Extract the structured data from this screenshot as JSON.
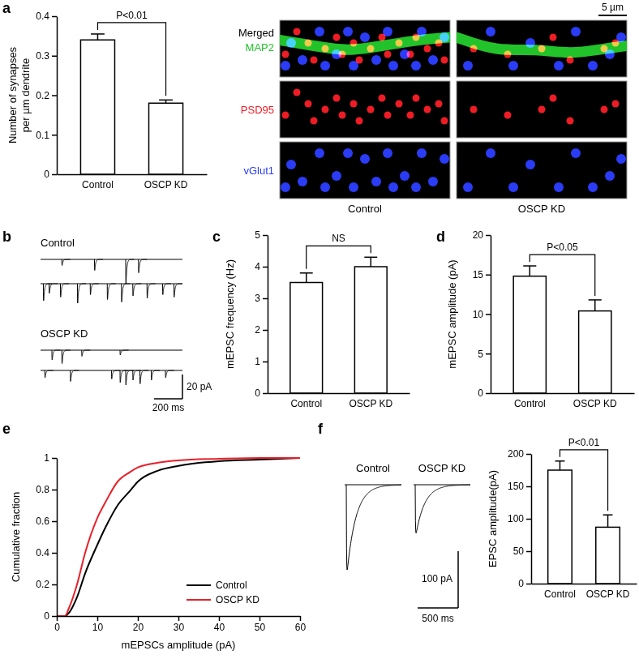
{
  "chart_data": [
    {
      "type": "bar",
      "panel": "a",
      "categories": [
        "Control",
        "OSCP KD"
      ],
      "values": [
        0.34,
        0.18
      ],
      "errors": [
        0.015,
        0.008
      ],
      "color": "#ffffff",
      "ylim": [
        0,
        0.4
      ],
      "yticks": [
        0,
        0.1,
        0.2,
        0.3,
        0.4
      ],
      "y_label": [
        "Number of synapses",
        "per µm dendrite"
      ],
      "annotation": "P<0.01",
      "grid": false
    },
    {
      "type": "image",
      "columns": [
        "Control",
        "OSCP KD"
      ],
      "merged_label": "Merged",
      "xlim": [
        0,
        30
      ],
      "ylim": [
        0,
        10
      ],
      "channels": [
        {
          "name": "MAP2",
          "color": "#22c32a",
          "dendrite": [
            [
              [
                0,
                3.5
              ],
              [
                6,
                4.5
              ],
              [
                12,
                5.5
              ],
              [
                18,
                4.5
              ],
              [
                24,
                3.5
              ],
              [
                30,
                3
              ]
            ],
            [
              [
                0,
                3
              ],
              [
                7,
                5.5
              ],
              [
                14,
                5
              ],
              [
                20,
                6
              ],
              [
                26,
                5
              ],
              [
                30,
                4.5
              ]
            ]
          ]
        },
        {
          "name": "PSD95",
          "color": "#ee1c25",
          "puncta": [
            [
              [
                1,
                6
              ],
              [
                3,
                2
              ],
              [
                5,
                4
              ],
              [
                6,
                7
              ],
              [
                8,
                5
              ],
              [
                10,
                3
              ],
              [
                11,
                6
              ],
              [
                13,
                4
              ],
              [
                14,
                7
              ],
              [
                16,
                5
              ],
              [
                18,
                3
              ],
              [
                19,
                6
              ],
              [
                21,
                4
              ],
              [
                23,
                6
              ],
              [
                24,
                3
              ],
              [
                26,
                5
              ],
              [
                28,
                4
              ],
              [
                29,
                7
              ]
            ],
            [
              [
                3,
                5
              ],
              [
                9,
                6
              ],
              [
                15,
                5
              ],
              [
                17,
                3
              ],
              [
                20,
                7
              ],
              [
                26,
                5
              ],
              [
                28,
                4
              ]
            ]
          ]
        },
        {
          "name": "vGlut1",
          "color": "#2a3cf5",
          "puncta": [
            [
              [
                1,
                8
              ],
              [
                2,
                4
              ],
              [
                4,
                7
              ],
              [
                7,
                2
              ],
              [
                8,
                8
              ],
              [
                10,
                6
              ],
              [
                12,
                2
              ],
              [
                13,
                8
              ],
              [
                15,
                3
              ],
              [
                17,
                7
              ],
              [
                19,
                2
              ],
              [
                20,
                8
              ],
              [
                22,
                6
              ],
              [
                24,
                8
              ],
              [
                25,
                2
              ],
              [
                27,
                7
              ],
              [
                29,
                3
              ]
            ],
            [
              [
                2,
                8
              ],
              [
                6,
                2
              ],
              [
                10,
                8
              ],
              [
                13,
                4
              ],
              [
                18,
                8
              ],
              [
                21,
                2
              ],
              [
                24,
                8
              ],
              [
                27,
                6
              ],
              [
                29,
                3
              ]
            ]
          ]
        }
      ],
      "scale_bar": {
        "value": 5,
        "label": "5 µm"
      }
    },
    {
      "type": "trace",
      "panel": "b",
      "xlim": [
        0,
        1000
      ],
      "ylim": [
        -3,
        25
      ],
      "groups": [
        {
          "label": "Control",
          "traces": [
            {
              "events": [
                {
                  "t": 150,
                  "amp": 5
                },
                {
                  "t": 380,
                  "amp": 9
                },
                {
                  "t": 600,
                  "amp": 20
                },
                {
                  "t": 690,
                  "amp": 11
                }
              ]
            },
            {
              "events": [
                {
                  "t": 20,
                  "amp": 14
                },
                {
                  "t": 60,
                  "amp": 8
                },
                {
                  "t": 140,
                  "amp": 11
                },
                {
                  "t": 260,
                  "amp": 16
                },
                {
                  "t": 350,
                  "amp": 9
                },
                {
                  "t": 470,
                  "amp": 13
                },
                {
                  "t": 570,
                  "amp": 15
                },
                {
                  "t": 650,
                  "amp": 10
                },
                {
                  "t": 750,
                  "amp": 12
                },
                {
                  "t": 860,
                  "amp": 9
                },
                {
                  "t": 940,
                  "amp": 11
                }
              ]
            }
          ]
        },
        {
          "label": "OSCP KD",
          "traces": [
            {
              "events": [
                {
                  "t": 80,
                  "amp": 8
                },
                {
                  "t": 150,
                  "amp": 11
                },
                {
                  "t": 290,
                  "amp": 5
                },
                {
                  "t": 560,
                  "amp": 4
                }
              ]
            },
            {
              "events": [
                {
                  "t": 30,
                  "amp": 6
                },
                {
                  "t": 210,
                  "amp": 9
                },
                {
                  "t": 500,
                  "amp": 7
                },
                {
                  "t": 560,
                  "amp": 10
                },
                {
                  "t": 600,
                  "amp": 12
                },
                {
                  "t": 650,
                  "amp": 8
                },
                {
                  "t": 700,
                  "amp": 11
                },
                {
                  "t": 780,
                  "amp": 8
                },
                {
                  "t": 880,
                  "amp": 6
                }
              ]
            }
          ]
        }
      ],
      "scale_bar": {
        "x": {
          "value": 200,
          "label": "200 ms"
        },
        "y": {
          "value": 20,
          "label": "20 pA"
        }
      }
    },
    {
      "type": "bar",
      "panel": "c",
      "categories": [
        "Control",
        "OSCP KD"
      ],
      "values": [
        3.5,
        4.0
      ],
      "errors": [
        0.3,
        0.3
      ],
      "color": "#ffffff",
      "ylim": [
        0,
        5
      ],
      "yticks": [
        0,
        1,
        2,
        3,
        4,
        5
      ],
      "y_label": [
        "mEPSC frequency (Hz)"
      ],
      "annotation": "NS",
      "grid": false
    },
    {
      "type": "bar",
      "panel": "d",
      "categories": [
        "Control",
        "OSCP KD"
      ],
      "values": [
        14.8,
        10.4
      ],
      "errors": [
        1.3,
        1.4
      ],
      "color": "#ffffff",
      "ylim": [
        0,
        20
      ],
      "yticks": [
        0,
        5,
        10,
        15,
        20
      ],
      "y_label": [
        "mEPSC amplitude (pA)"
      ],
      "annotation": "P<0.05",
      "grid": false
    },
    {
      "type": "line",
      "panel": "e",
      "x": [
        0,
        2,
        3,
        5,
        7,
        10,
        12,
        15,
        18,
        20,
        25,
        30,
        40,
        50,
        60
      ],
      "series": [
        {
          "name": "Control",
          "color": "#000000",
          "values": [
            0,
            0,
            0.02,
            0.12,
            0.27,
            0.45,
            0.56,
            0.7,
            0.79,
            0.85,
            0.92,
            0.95,
            0.98,
            0.99,
            1
          ]
        },
        {
          "name": "OSCP KD",
          "color": "#e8202a",
          "values": [
            0,
            0,
            0.05,
            0.2,
            0.4,
            0.62,
            0.72,
            0.85,
            0.91,
            0.94,
            0.97,
            0.985,
            0.995,
            1,
            1
          ]
        }
      ],
      "xlim": [
        0,
        60
      ],
      "ylim": [
        0,
        1
      ],
      "xticks": [
        0,
        10,
        20,
        30,
        40,
        50,
        60
      ],
      "yticks": [
        0,
        0.2,
        0.4,
        0.6,
        0.8,
        1
      ],
      "x_label": "mEPSCs amplitude (pA)",
      "y_label": [
        "Cumulative fraction"
      ],
      "legend": "lower right",
      "grid": false
    },
    {
      "type": "trace",
      "panel": "f",
      "xlim": [
        0,
        700
      ],
      "ylim": [
        -10,
        160
      ],
      "groups": [
        {
          "label": "Control",
          "traces": [
            {
              "events": [
                {
                  "t": 20,
                  "amp": 150
                }
              ]
            }
          ]
        },
        {
          "label": "OSCP KD",
          "traces": [
            {
              "events": [
                {
                  "t": 20,
                  "amp": 85
                }
              ]
            }
          ]
        }
      ],
      "scale_bar": {
        "x": {
          "value": 500,
          "label": "500 ms"
        },
        "y": {
          "value": 100,
          "label": "100 pA"
        }
      }
    },
    {
      "type": "bar",
      "categories": [
        "Control",
        "OSCP KD"
      ],
      "values": [
        175,
        87
      ],
      "errors": [
        14,
        19
      ],
      "color": "#ffffff",
      "ylim": [
        0,
        200
      ],
      "yticks": [
        0,
        50,
        100,
        150,
        200
      ],
      "y_label": [
        "EPSC amplitude(pA)"
      ],
      "annotation": "P<0.01",
      "grid": false
    }
  ]
}
